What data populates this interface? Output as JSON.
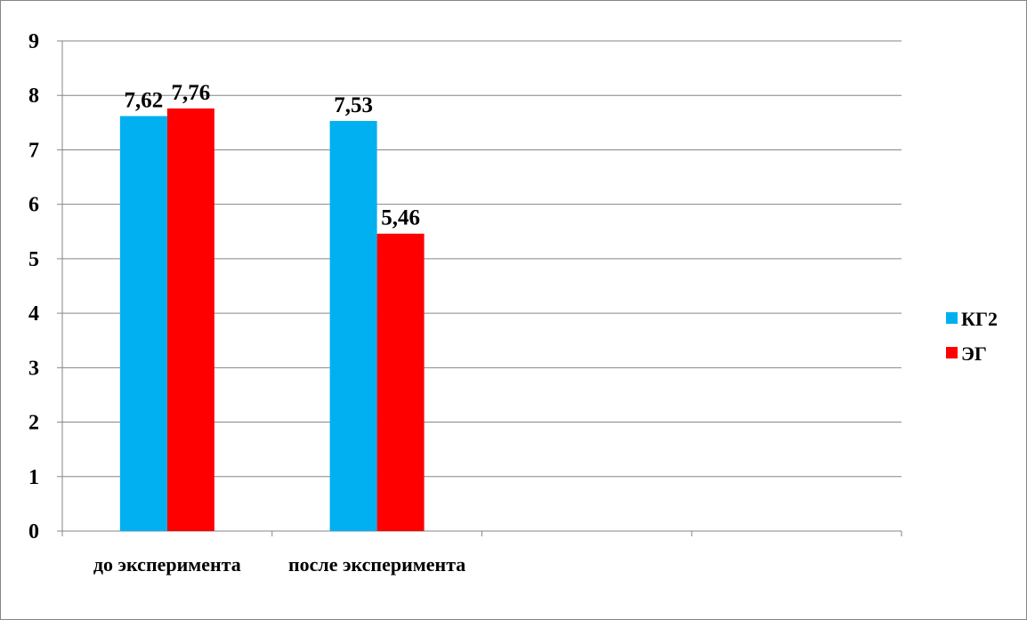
{
  "chart_data": {
    "type": "bar",
    "categories": [
      "до эксперимента",
      "после эксперимента",
      null,
      null
    ],
    "series": [
      {
        "name": "КГ2",
        "color": "#00b0f0",
        "values": [
          7.62,
          7.53,
          null,
          null
        ],
        "value_labels": [
          "7,62",
          "7,53",
          null,
          null
        ]
      },
      {
        "name": "ЭГ",
        "color": "#ff0000",
        "values": [
          7.76,
          5.46,
          null,
          null
        ],
        "value_labels": [
          "7,76",
          "5,46",
          null,
          null
        ]
      }
    ],
    "ylim": [
      0,
      9
    ],
    "yticks": [
      0,
      1,
      2,
      3,
      4,
      5,
      6,
      7,
      8,
      9
    ],
    "grid": true,
    "legend": "right"
  }
}
